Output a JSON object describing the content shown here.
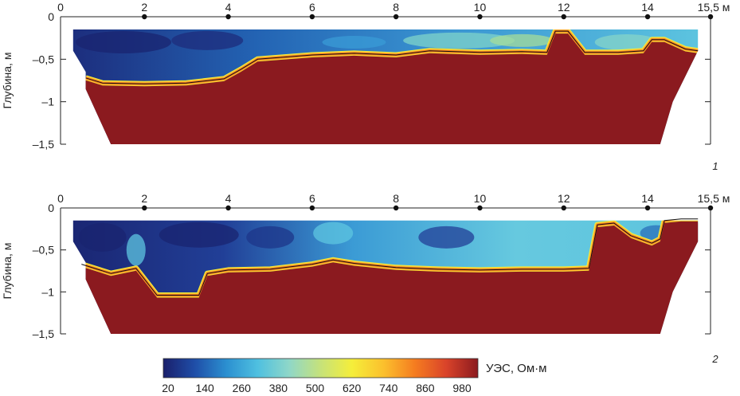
{
  "chart_data": [
    {
      "type": "heatmap",
      "panel_label": "1",
      "ylabel": "Глубина, м",
      "x_ticks": [
        "0",
        "2",
        "4",
        "6",
        "8",
        "10",
        "12",
        "14"
      ],
      "x_end_label": "15,5 м",
      "x_range": [
        0,
        15.5
      ],
      "y_ticks": [
        "0",
        "–0,5",
        "–1",
        "–1,5"
      ],
      "y_range": [
        0,
        -1.5
      ],
      "section_outline": [
        [
          0.3,
          -0.15
        ],
        [
          15.2,
          -0.15
        ],
        [
          15.2,
          -0.4
        ],
        [
          14.6,
          -1.0
        ],
        [
          14.3,
          -1.5
        ],
        [
          1.2,
          -1.5
        ],
        [
          0.6,
          -0.85
        ],
        [
          0.6,
          -0.65
        ],
        [
          0.3,
          -0.4
        ]
      ],
      "boundary_line": [
        [
          0.6,
          -0.72
        ],
        [
          1.0,
          -0.78
        ],
        [
          2.0,
          -0.79
        ],
        [
          3.0,
          -0.78
        ],
        [
          3.9,
          -0.73
        ],
        [
          4.3,
          -0.62
        ],
        [
          4.7,
          -0.5
        ],
        [
          6.0,
          -0.45
        ],
        [
          7.0,
          -0.43
        ],
        [
          8.0,
          -0.45
        ],
        [
          8.8,
          -0.4
        ],
        [
          10.0,
          -0.42
        ],
        [
          11.0,
          -0.41
        ],
        [
          11.6,
          -0.42
        ],
        [
          11.8,
          -0.17
        ],
        [
          12.1,
          -0.17
        ],
        [
          12.5,
          -0.42
        ],
        [
          13.3,
          -0.42
        ],
        [
          13.9,
          -0.4
        ],
        [
          14.1,
          -0.27
        ],
        [
          14.4,
          -0.27
        ],
        [
          14.9,
          -0.38
        ],
        [
          15.2,
          -0.4
        ]
      ]
    },
    {
      "type": "heatmap",
      "panel_label": "2",
      "ylabel": "Глубина, м",
      "x_ticks": [
        "0",
        "2",
        "4",
        "6",
        "8",
        "10",
        "12",
        "14"
      ],
      "x_end_label": "15,5 м",
      "x_range": [
        0,
        15.5
      ],
      "y_ticks": [
        "0",
        "–0,5",
        "–1",
        "–1,5"
      ],
      "y_range": [
        0,
        -1.5
      ],
      "section_outline": [
        [
          0.3,
          -0.15
        ],
        [
          15.2,
          -0.15
        ],
        [
          15.2,
          -0.4
        ],
        [
          14.6,
          -1.0
        ],
        [
          14.3,
          -1.5
        ],
        [
          1.2,
          -1.5
        ],
        [
          0.6,
          -0.85
        ],
        [
          0.6,
          -0.65
        ],
        [
          0.3,
          -0.4
        ]
      ],
      "boundary_line": [
        [
          0.5,
          -0.67
        ],
        [
          1.2,
          -0.78
        ],
        [
          1.8,
          -0.72
        ],
        [
          2.3,
          -1.04
        ],
        [
          3.0,
          -1.04
        ],
        [
          3.3,
          -1.04
        ],
        [
          3.5,
          -0.78
        ],
        [
          4.0,
          -0.74
        ],
        [
          5.0,
          -0.73
        ],
        [
          6.0,
          -0.67
        ],
        [
          6.5,
          -0.62
        ],
        [
          7.0,
          -0.66
        ],
        [
          8.0,
          -0.71
        ],
        [
          9.0,
          -0.73
        ],
        [
          10.0,
          -0.74
        ],
        [
          11.0,
          -0.73
        ],
        [
          12.0,
          -0.73
        ],
        [
          12.6,
          -0.72
        ],
        [
          12.8,
          -0.2
        ],
        [
          13.2,
          -0.18
        ],
        [
          13.6,
          -0.33
        ],
        [
          14.1,
          -0.42
        ],
        [
          14.3,
          -0.37
        ],
        [
          14.4,
          -0.15
        ],
        [
          14.8,
          -0.13
        ],
        [
          15.2,
          -0.13
        ]
      ]
    }
  ],
  "colorbar": {
    "title": "УЭС, Ом·м",
    "labels": [
      "20",
      "140",
      "260",
      "380",
      "500",
      "620",
      "740",
      "860",
      "980"
    ],
    "colors": [
      "#1a1f6b",
      "#1f4ea8",
      "#2b8fd0",
      "#4fc0e0",
      "#8fd7c8",
      "#c6e27a",
      "#f5ee3a",
      "#fbc02d",
      "#f57c20",
      "#d9432a",
      "#8b1a1f"
    ]
  },
  "colors": {
    "bedrock": "#8b1a1f",
    "deep_blue": "#1a2a78",
    "mid_blue": "#2f7fc4",
    "light_blue": "#5bc4e2"
  }
}
